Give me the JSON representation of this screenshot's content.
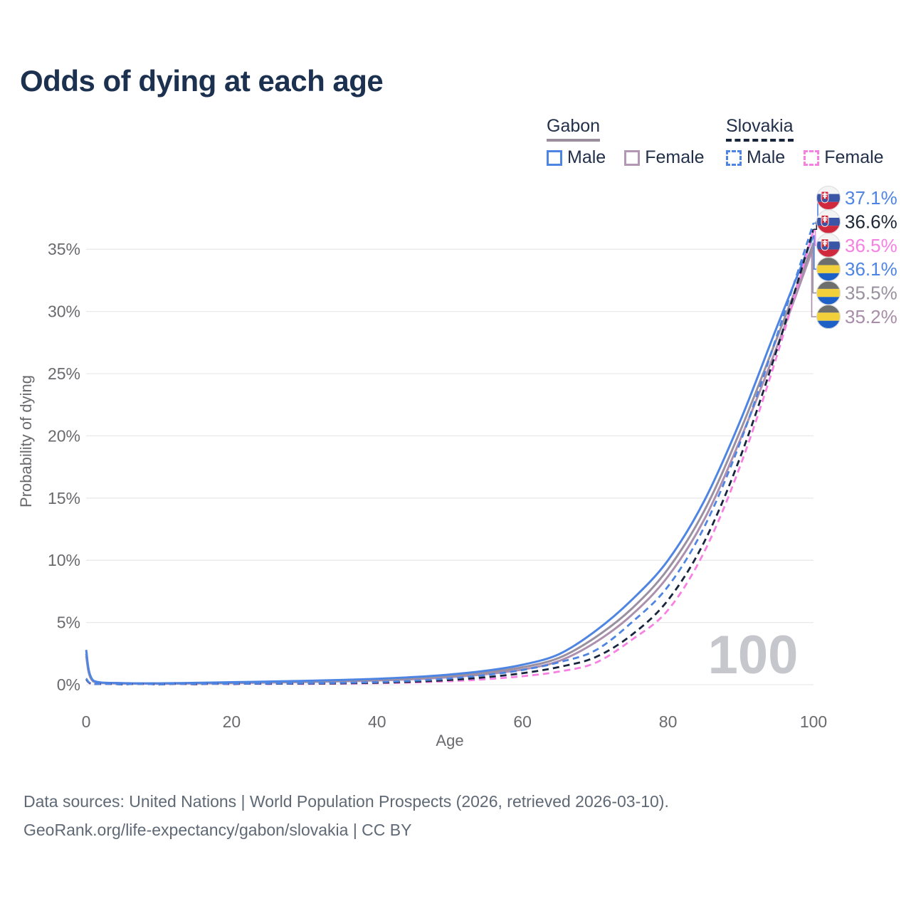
{
  "title": "Odds of dying at each age",
  "watermark_age": "100",
  "legend": {
    "groups": [
      {
        "label": "Gabon",
        "line_style": "solid",
        "underline_color": "#9a8d9c",
        "items": [
          {
            "label": "Male",
            "color": "#4f85e2"
          },
          {
            "label": "Female",
            "color": "#b497b4"
          }
        ]
      },
      {
        "label": "Slovakia",
        "line_style": "dashed",
        "underline_color": "#18253d",
        "items": [
          {
            "label": "Male",
            "color": "#4f85e2"
          },
          {
            "label": "Female",
            "color": "#f980e3"
          }
        ]
      }
    ]
  },
  "footer": {
    "line1": "Data sources: United Nations | World Population Prospects (2026, retrieved 2026-03-10).",
    "line2": "GeoRank.org/life-expectancy/gabon/slovakia | CC BY"
  },
  "chart_data": {
    "type": "line",
    "title": "Odds of dying at each age",
    "xlabel": "Age",
    "ylabel": "Probability of dying",
    "xlim": [
      0,
      100
    ],
    "ylim_percent": [
      0,
      38
    ],
    "grid": "horizontal",
    "x_ticks": [
      0,
      20,
      40,
      60,
      80,
      100
    ],
    "y_ticks": [
      {
        "value": 0,
        "label": "0%"
      },
      {
        "value": 5,
        "label": "5%"
      },
      {
        "value": 10,
        "label": "10%"
      },
      {
        "value": 15,
        "label": "15%"
      },
      {
        "value": 20,
        "label": "20%"
      },
      {
        "value": 25,
        "label": "25%"
      },
      {
        "value": 30,
        "label": "30%"
      },
      {
        "value": 35,
        "label": "35%"
      }
    ],
    "ages": [
      0,
      1,
      5,
      10,
      15,
      20,
      25,
      30,
      35,
      40,
      45,
      50,
      55,
      60,
      65,
      70,
      75,
      80,
      85,
      90,
      95,
      100
    ],
    "series": [
      {
        "name": "Gabon Female",
        "country": "Gabon",
        "sex": "female",
        "style": "solid",
        "color": "#ad8fae",
        "flag": "gabon",
        "end_label": "35.2%",
        "label_color": "#a98ca9",
        "values_percent": [
          2.3,
          0.25,
          0.1,
          0.08,
          0.1,
          0.13,
          0.17,
          0.21,
          0.27,
          0.34,
          0.44,
          0.6,
          0.84,
          1.22,
          1.9,
          3.4,
          5.6,
          8.7,
          13.3,
          19.8,
          27.2,
          35.2
        ]
      },
      {
        "name": "Gabon (both sexes)",
        "country": "Gabon",
        "sex": "both",
        "style": "solid",
        "color": "#9a90a0",
        "flag": "gabon",
        "end_label": "35.5%",
        "label_color": "#9a90a0",
        "values_percent": [
          2.5,
          0.28,
          0.11,
          0.09,
          0.12,
          0.16,
          0.21,
          0.26,
          0.32,
          0.4,
          0.52,
          0.7,
          0.97,
          1.4,
          2.15,
          3.8,
          6.1,
          9.3,
          14.0,
          20.5,
          27.9,
          35.5
        ]
      },
      {
        "name": "Gabon Male",
        "country": "Gabon",
        "sex": "male",
        "style": "solid",
        "color": "#4f85e2",
        "flag": "gabon",
        "end_label": "36.1%",
        "label_color": "#4f85e2",
        "values_percent": [
          2.8,
          0.32,
          0.13,
          0.11,
          0.15,
          0.2,
          0.25,
          0.31,
          0.38,
          0.47,
          0.61,
          0.82,
          1.12,
          1.6,
          2.45,
          4.3,
          6.8,
          10.0,
          14.8,
          21.3,
          28.8,
          36.1
        ]
      },
      {
        "name": "Slovakia Female",
        "country": "Slovakia",
        "sex": "female",
        "style": "dashed",
        "color": "#f980e3",
        "flag": "slovakia",
        "end_label": "36.5%",
        "label_color": "#f980e3",
        "values_percent": [
          0.42,
          0.03,
          0.015,
          0.015,
          0.03,
          0.04,
          0.05,
          0.06,
          0.08,
          0.12,
          0.18,
          0.28,
          0.44,
          0.68,
          1.05,
          1.75,
          3.6,
          6.0,
          10.7,
          17.7,
          26.5,
          36.5
        ]
      },
      {
        "name": "Slovakia (both sexes)",
        "country": "Slovakia",
        "sex": "both",
        "style": "dashed",
        "color": "#18253d",
        "flag": "slovakia",
        "end_label": "36.6%",
        "label_color": "#1d2736",
        "values_percent": [
          0.45,
          0.035,
          0.018,
          0.018,
          0.04,
          0.06,
          0.075,
          0.09,
          0.11,
          0.16,
          0.24,
          0.38,
          0.6,
          0.92,
          1.42,
          2.2,
          4.0,
          6.8,
          11.5,
          18.4,
          27.0,
          36.6
        ]
      },
      {
        "name": "Slovakia Male",
        "country": "Slovakia",
        "sex": "male",
        "style": "dashed",
        "color": "#4f85e2",
        "flag": "slovakia",
        "end_label": "37.1%",
        "label_color": "#4f85e2",
        "values_percent": [
          0.5,
          0.04,
          0.02,
          0.02,
          0.05,
          0.08,
          0.1,
          0.12,
          0.15,
          0.21,
          0.32,
          0.5,
          0.78,
          1.18,
          1.8,
          2.75,
          5.0,
          7.9,
          12.7,
          19.6,
          28.1,
          37.1
        ]
      }
    ]
  }
}
